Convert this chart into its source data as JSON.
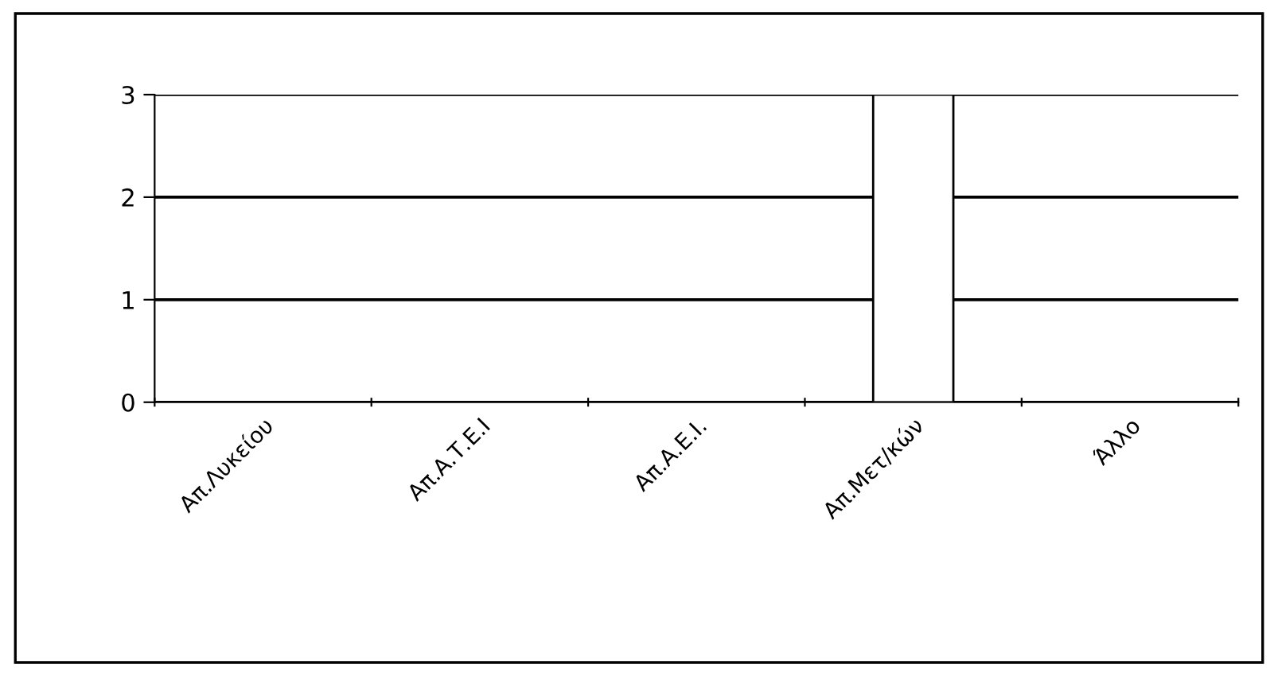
{
  "chart_data": {
    "type": "bar",
    "categories": [
      "Απ.Λυκείου",
      "Απ.Α.Τ.Ε.Ι",
      "Απ.Α.Ε.Ι.",
      "Απ.Μετ/κών",
      "Άλλο"
    ],
    "values": [
      0,
      0,
      0,
      3,
      0
    ],
    "color": "#ffffff",
    "ylim": [
      0,
      3
    ],
    "yticks": [
      0,
      1,
      2,
      3
    ],
    "grid": "y",
    "legend": false
  }
}
